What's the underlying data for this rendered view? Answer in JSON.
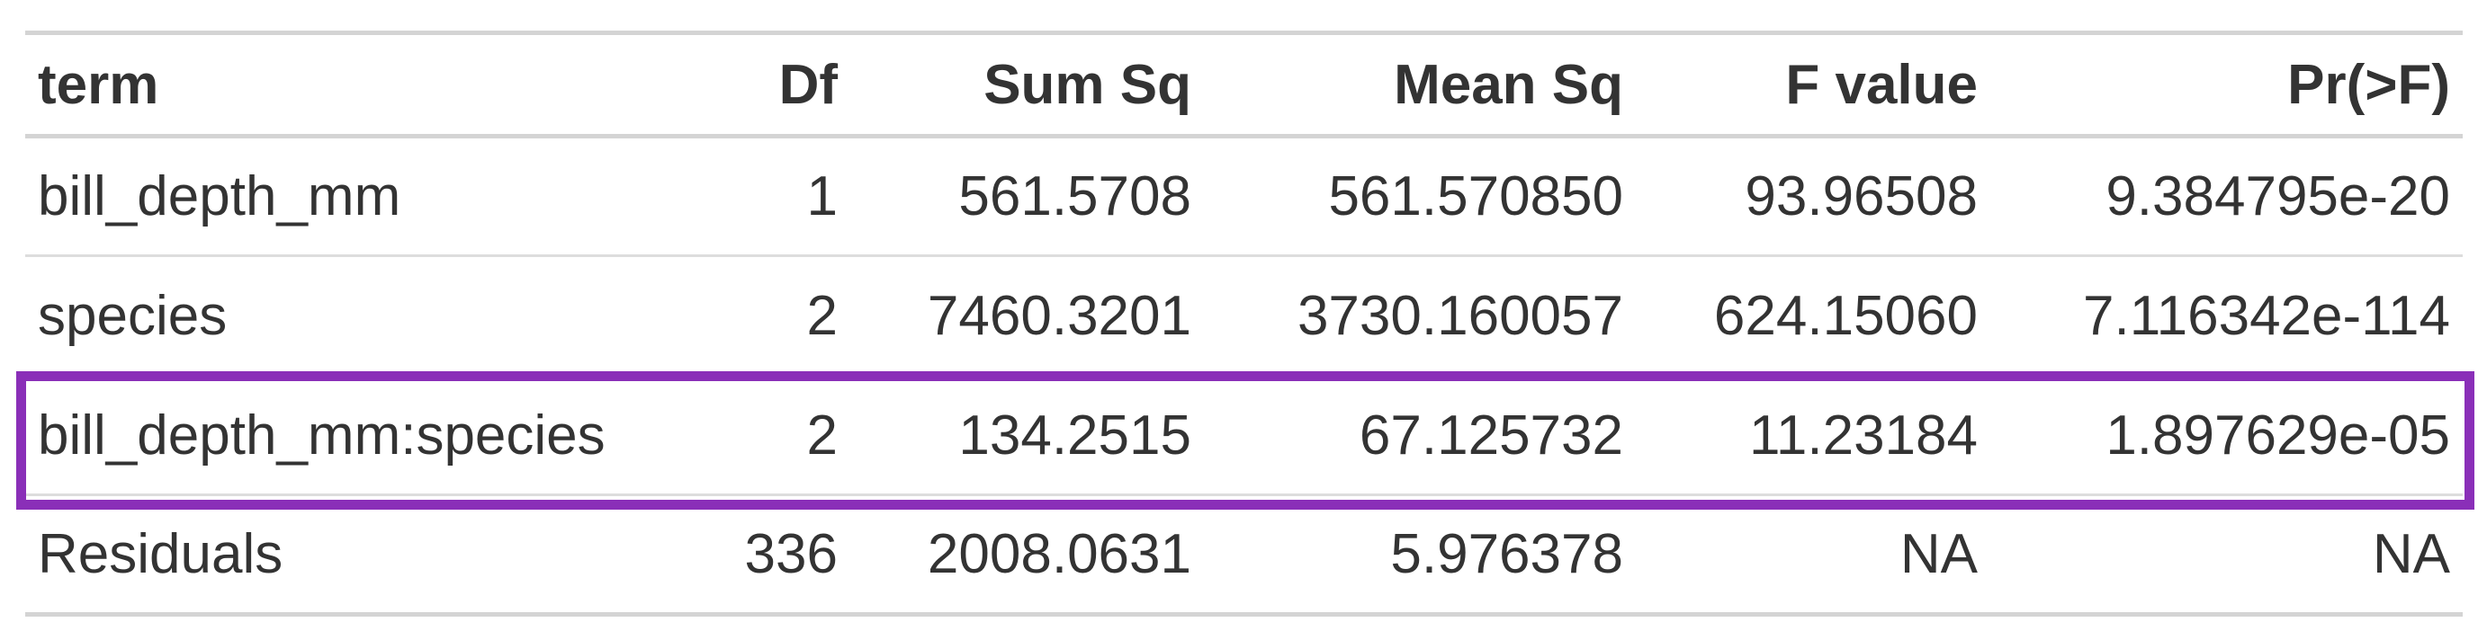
{
  "table": {
    "columns": [
      {
        "key": "term",
        "label": "term",
        "align": "left"
      },
      {
        "key": "df",
        "label": "Df",
        "align": "right"
      },
      {
        "key": "sum_sq",
        "label": "Sum Sq",
        "align": "right"
      },
      {
        "key": "mean_sq",
        "label": "Mean Sq",
        "align": "right"
      },
      {
        "key": "f_value",
        "label": "F value",
        "align": "right"
      },
      {
        "key": "pr_f",
        "label": "Pr(>F)",
        "align": "right"
      }
    ],
    "rows": [
      {
        "term": "bill_depth_mm",
        "df": "1",
        "sum_sq": "561.5708",
        "mean_sq": "561.570850",
        "f_value": "93.96508",
        "pr_f": "9.384795e-20"
      },
      {
        "term": "species",
        "df": "2",
        "sum_sq": "7460.3201",
        "mean_sq": "3730.160057",
        "f_value": "624.15060",
        "pr_f": "7.116342e-114"
      },
      {
        "term": "bill_depth_mm:species",
        "df": "2",
        "sum_sq": "134.2515",
        "mean_sq": "67.125732",
        "f_value": "11.23184",
        "pr_f": "1.897629e-05"
      },
      {
        "term": "Residuals",
        "df": "336",
        "sum_sq": "2008.0631",
        "mean_sq": "5.976378",
        "f_value": "NA",
        "pr_f": "NA"
      }
    ]
  },
  "highlight": {
    "row": "bill_depth_mm:species",
    "color": "#8a2fb8"
  },
  "colors": {
    "text": "#333333",
    "rule": "#d4d4d4"
  }
}
